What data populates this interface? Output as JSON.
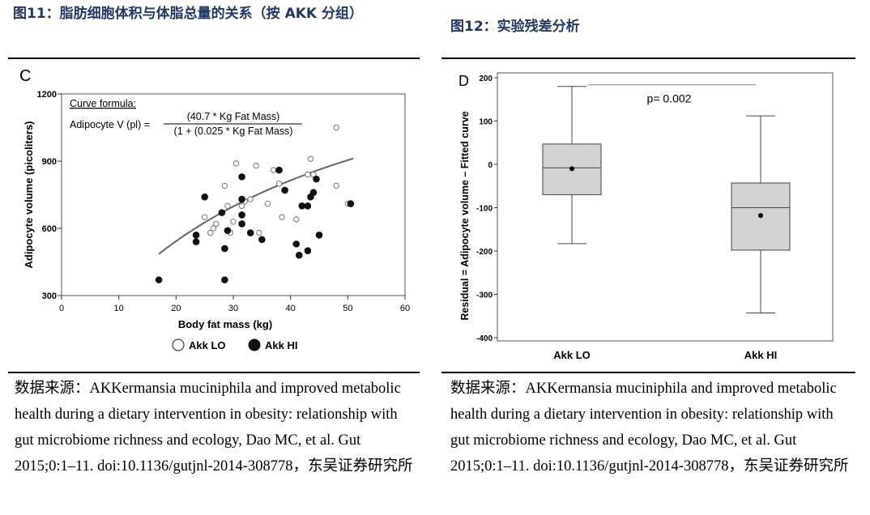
{
  "figures": {
    "fig11_title": "图11：脂肪细胞体积与体脂总量的关系（按 AKK 分组）",
    "fig12_title": "图12：实验残差分析",
    "fig11_source": "数据来源：AKKermansia muciniphila and improved metabolic health during a dietary intervention in obesity: relationship with gut microbiome richness and ecology, Dao MC, et al. Gut 2015;0:1–11. doi:10.1136/gutjnl-2014-308778，东吴证券研究所",
    "fig12_source": "数据来源：AKKermansia muciniphila and improved metabolic health during a dietary intervention in obesity: relationship with gut microbiome richness and ecology, Dao MC, et al. Gut 2015;0:1–11. doi:10.1136/gutjnl-2014-308778，东吴证券研究所"
  },
  "chart_data": [
    {
      "type": "scatter",
      "panel_label": "C",
      "xlabel": "Body fat mass (kg)",
      "ylabel": "Adipocyte volume (picoliters)",
      "xlim": [
        0,
        60
      ],
      "ylim": [
        300,
        1200
      ],
      "xticks": [
        0,
        10,
        20,
        30,
        40,
        50,
        60
      ],
      "yticks": [
        300,
        600,
        900,
        1200
      ],
      "formula_title": "Curve formula:",
      "formula_lhs": "Adipocyte V (pl) =",
      "formula_num": "(40.7 * Kg Fat Mass)",
      "formula_den": "(1 + (0.025 * Kg Fat Mass)",
      "legend": [
        "Akk LO",
        "Akk HI"
      ],
      "series": [
        {
          "name": "Akk LO",
          "marker": "open",
          "points": [
            [
              25,
              650
            ],
            [
              26,
              580
            ],
            [
              26.5,
              600
            ],
            [
              27,
              620
            ],
            [
              28.5,
              790
            ],
            [
              29,
              700
            ],
            [
              29.5,
              580
            ],
            [
              30,
              630
            ],
            [
              30.5,
              890
            ],
            [
              31.5,
              700
            ],
            [
              32,
              720
            ],
            [
              33,
              730
            ],
            [
              34,
              880
            ],
            [
              34.5,
              580
            ],
            [
              36,
              710
            ],
            [
              37,
              860
            ],
            [
              38,
              800
            ],
            [
              38.5,
              650
            ],
            [
              41,
              640
            ],
            [
              43,
              840
            ],
            [
              43.5,
              910
            ],
            [
              44,
              840
            ],
            [
              48,
              790
            ],
            [
              48,
              1050
            ],
            [
              50,
              710
            ]
          ]
        },
        {
          "name": "Akk HI",
          "marker": "filled",
          "points": [
            [
              17,
              370
            ],
            [
              23.5,
              570
            ],
            [
              23.5,
              540
            ],
            [
              25,
              740
            ],
            [
              28,
              670
            ],
            [
              28.5,
              510
            ],
            [
              28.5,
              370
            ],
            [
              29,
              590
            ],
            [
              31.5,
              730
            ],
            [
              31.5,
              620
            ],
            [
              31.5,
              830
            ],
            [
              31.5,
              660
            ],
            [
              33,
              580
            ],
            [
              35,
              550
            ],
            [
              38,
              860
            ],
            [
              39,
              770
            ],
            [
              41,
              530
            ],
            [
              41.5,
              480
            ],
            [
              42,
              700
            ],
            [
              43,
              700
            ],
            [
              43,
              500
            ],
            [
              43.5,
              740
            ],
            [
              44,
              760
            ],
            [
              44.5,
              820
            ],
            [
              45,
              570
            ],
            [
              50.5,
              710
            ]
          ]
        }
      ],
      "curve_x_range": [
        17,
        51
      ]
    },
    {
      "type": "box",
      "panel_label": "D",
      "ylabel": "Residual = Adipocyte volume – Fitted curve",
      "ylim": [
        -400,
        200
      ],
      "yticks": [
        200,
        100,
        0,
        -100,
        -200,
        -300,
        -400
      ],
      "categories": [
        "Akk LO",
        "Akk HI"
      ],
      "boxes": [
        {
          "name": "Akk LO",
          "whisker_low": -183,
          "q1": -70,
          "median": -8,
          "q3": 47,
          "whisker_high": 180,
          "mean": -10
        },
        {
          "name": "Akk HI",
          "whisker_low": -343,
          "q1": -198,
          "median": -100,
          "q3": -43,
          "whisker_high": 112,
          "mean": -118
        }
      ],
      "annotation": "p= 0.002"
    }
  ]
}
